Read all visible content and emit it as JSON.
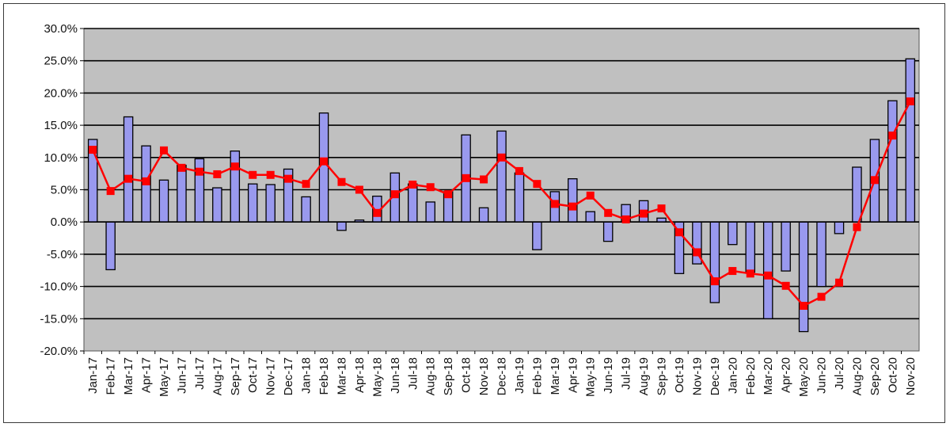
{
  "chart_data": {
    "type": "bar",
    "title": "",
    "xlabel": "",
    "ylabel": "",
    "ylim": [
      -20,
      30
    ],
    "ytick_values": [
      -20,
      -15,
      -10,
      -5,
      0,
      5,
      10,
      15,
      20,
      25,
      30
    ],
    "ytick_labels": [
      "-20.0%",
      "-15.0%",
      "-10.0%",
      "-5.0%",
      "0.0%",
      "5.0%",
      "10.0%",
      "15.0%",
      "20.0%",
      "25.0%",
      "30.0%"
    ],
    "grid": true,
    "legend": "none",
    "categories": [
      "Jan-17",
      "Feb-17",
      "Mar-17",
      "Apr-17",
      "May-17",
      "Jun-17",
      "Jul-17",
      "Aug-17",
      "Sep-17",
      "Oct-17",
      "Nov-17",
      "Dec-17",
      "Jan-18",
      "Feb-18",
      "Mar-18",
      "Apr-18",
      "May-18",
      "Jun-18",
      "Jul-18",
      "Aug-18",
      "Sep-18",
      "Oct-18",
      "Nov-18",
      "Dec-18",
      "Jan-19",
      "Feb-19",
      "Mar-19",
      "Apr-19",
      "May-19",
      "Jun-19",
      "Jul-19",
      "Aug-19",
      "Sep-19",
      "Oct-19",
      "Nov-19",
      "Dec-19",
      "Jan-20",
      "Feb-20",
      "Mar-20",
      "Apr-20",
      "May-20",
      "Jun-20",
      "Jul-20",
      "Aug-20",
      "Sep-20",
      "Oct-20",
      "Nov-20"
    ],
    "series": [
      {
        "type": "bar",
        "color": "#9999ee",
        "values": [
          12.8,
          -7.4,
          16.3,
          11.8,
          6.5,
          8.8,
          9.8,
          5.3,
          11.0,
          5.9,
          5.8,
          8.2,
          3.9,
          16.9,
          -1.3,
          0.3,
          4.0,
          7.6,
          5.9,
          3.1,
          4.7,
          13.5,
          2.2,
          14.1,
          7.6,
          -4.3,
          4.7,
          6.7,
          1.6,
          -3.0,
          2.7,
          3.3,
          0.6,
          -8.0,
          -6.5,
          -12.5,
          -3.5,
          -7.8,
          -15.0,
          -7.6,
          -17.0,
          -10.0,
          -1.8,
          8.5,
          12.8,
          18.8,
          25.3
        ]
      },
      {
        "type": "line",
        "color": "#ff0000",
        "values": [
          11.2,
          4.8,
          6.7,
          6.3,
          11.1,
          8.4,
          7.8,
          7.4,
          8.6,
          7.3,
          7.3,
          6.7,
          5.9,
          9.4,
          6.2,
          5.0,
          1.4,
          4.3,
          5.8,
          5.4,
          4.3,
          6.8,
          6.6,
          10.0,
          7.9,
          5.9,
          2.8,
          2.4,
          4.1,
          1.4,
          0.4,
          1.3,
          2.1,
          -1.6,
          -4.7,
          -9.2,
          -7.6,
          -8.0,
          -8.3,
          -9.9,
          -13.0,
          -11.6,
          -9.4,
          -0.8,
          6.5,
          13.4,
          18.7
        ]
      }
    ]
  }
}
